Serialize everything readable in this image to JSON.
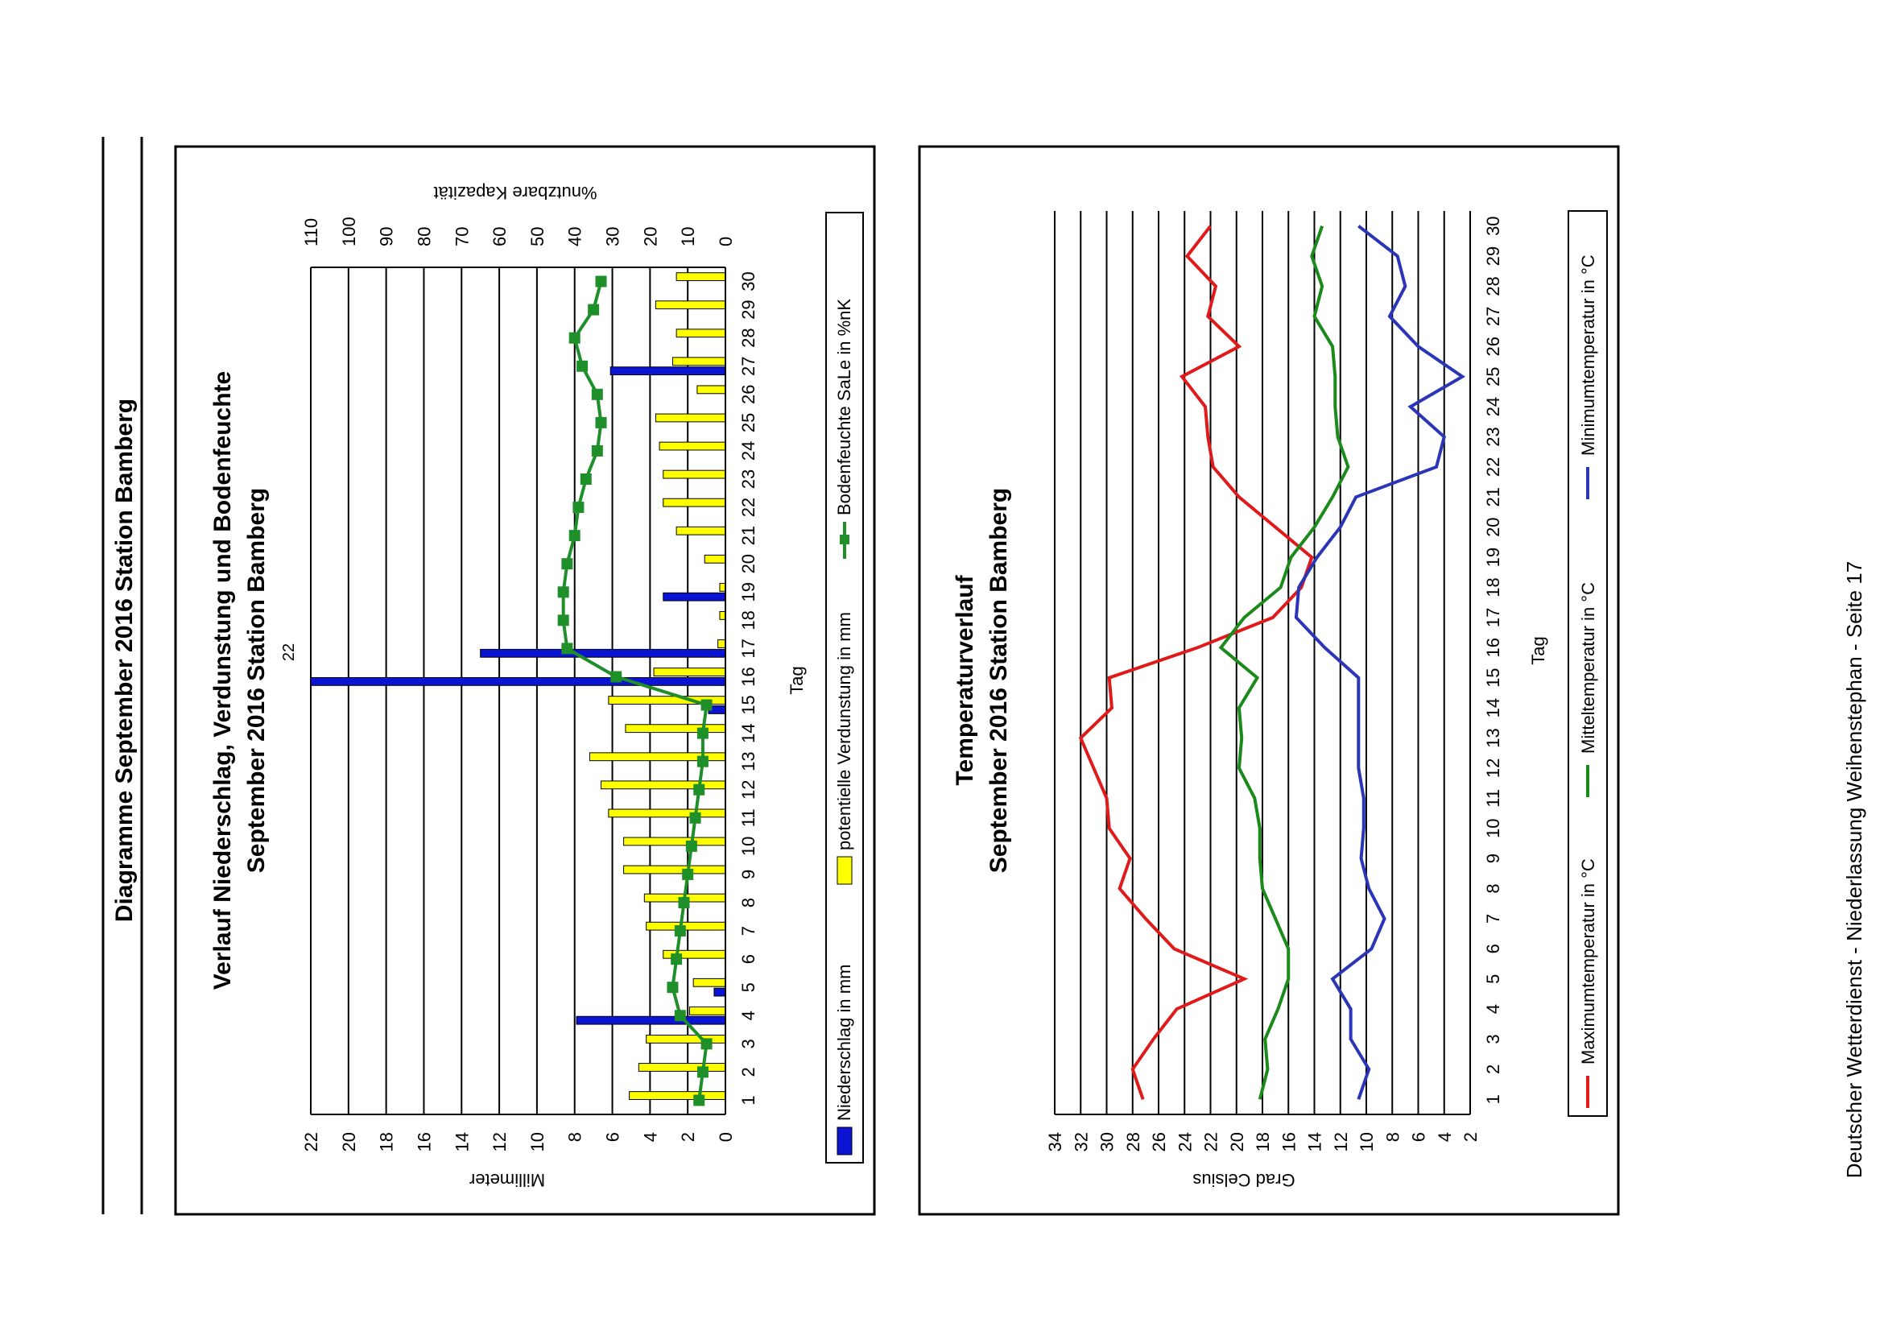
{
  "page": {
    "title": "Diagramme September 2016 Station Bamberg",
    "footer": "Deutscher Wetterdienst - Niederlassung Weihenstephan - Seite 17"
  },
  "chart_data": [
    {
      "type": "bar",
      "title": "Verlauf Niederschlag, Verdunstung und Bodenfeuchte",
      "subtitle": "September 2016 Station Bamberg",
      "xlabel": "Tag",
      "ylabel": "Millimeter",
      "y2label": "%nutzbare Kapazität",
      "categories": [
        1,
        2,
        3,
        4,
        5,
        6,
        7,
        8,
        9,
        10,
        11,
        12,
        13,
        14,
        15,
        16,
        17,
        18,
        19,
        20,
        21,
        22,
        23,
        24,
        25,
        26,
        27,
        28,
        29,
        30
      ],
      "ylim": [
        0,
        22
      ],
      "y2lim": [
        0,
        110
      ],
      "yticks": [
        0,
        2,
        4,
        6,
        8,
        10,
        12,
        14,
        16,
        18,
        20,
        22
      ],
      "y2ticks": [
        0,
        10,
        20,
        30,
        40,
        50,
        60,
        70,
        80,
        90,
        100,
        110
      ],
      "clipped_label": "22",
      "grid": true,
      "legend_position": "bottom",
      "colors": {
        "precip": "#0a14d2",
        "evap": "#ffff00",
        "soil": "#1f8f2a"
      },
      "series": [
        {
          "name": "Niederschlag in mm",
          "axis": "left",
          "kind": "bar",
          "values": [
            0,
            0,
            0,
            7.9,
            0.6,
            0,
            0,
            0,
            0,
            0,
            0,
            0,
            0,
            0,
            0.9,
            22,
            13.0,
            0,
            3.3,
            0,
            0,
            0,
            0,
            0,
            0,
            0,
            6.1,
            0,
            0,
            0
          ]
        },
        {
          "name": "potentielle Verdunstung in mm",
          "axis": "left",
          "kind": "bar",
          "values": [
            5.1,
            4.6,
            4.2,
            1.9,
            1.7,
            3.3,
            4.2,
            4.3,
            5.4,
            5.4,
            6.2,
            6.6,
            7.2,
            5.3,
            6.2,
            3.8,
            0.4,
            0.3,
            0.3,
            1.1,
            2.6,
            3.3,
            3.3,
            3.5,
            3.7,
            1.5,
            2.8,
            2.6,
            3.7,
            2.6
          ]
        },
        {
          "name": "Bodenfeuchte SaLe in %nK",
          "axis": "right",
          "kind": "line",
          "values": [
            7,
            6,
            5,
            12,
            14,
            13,
            12,
            11,
            10,
            9,
            8,
            7,
            6,
            6,
            5,
            29,
            42,
            43,
            43,
            42,
            40,
            39,
            37,
            34,
            33,
            34,
            38,
            40,
            35,
            33
          ]
        }
      ]
    },
    {
      "type": "line",
      "title": "Temperaturverlauf",
      "subtitle": "September 2016 Station Bamberg",
      "xlabel": "Tag",
      "ylabel": "Grad Celsius",
      "x": [
        1,
        2,
        3,
        4,
        5,
        6,
        7,
        8,
        9,
        10,
        11,
        12,
        13,
        14,
        15,
        16,
        17,
        18,
        19,
        20,
        21,
        22,
        23,
        24,
        25,
        26,
        27,
        28,
        29,
        30
      ],
      "ylim": [
        2,
        34
      ],
      "yticks": [
        2,
        4,
        6,
        8,
        10,
        12,
        14,
        16,
        18,
        20,
        22,
        24,
        26,
        28,
        30,
        32,
        34
      ],
      "grid": true,
      "legend_position": "bottom",
      "series": [
        {
          "name": "Maximumtemperatur in °C",
          "color": "#e01a1a",
          "values": [
            27.2,
            28.0,
            26.4,
            24.6,
            19.4,
            24.8,
            27.0,
            29.0,
            28.2,
            29.8,
            30.0,
            31.0,
            32.0,
            29.6,
            29.8,
            23.0,
            17.2,
            15.0,
            14.2,
            17.0,
            19.8,
            21.8,
            22.2,
            22.4,
            24.2,
            19.8,
            22.2,
            21.6,
            23.8,
            22.0
          ]
        },
        {
          "name": "Mitteltemperatur in °C",
          "color": "#1a8a1a",
          "values": [
            18.2,
            17.6,
            17.8,
            16.8,
            16.0,
            16.0,
            17.0,
            18.0,
            18.2,
            18.2,
            18.6,
            19.8,
            19.6,
            19.8,
            18.4,
            21.2,
            19.4,
            16.6,
            15.8,
            14.0,
            12.6,
            11.4,
            12.2,
            12.4,
            12.4,
            12.6,
            14.0,
            13.4,
            14.2,
            13.4
          ]
        },
        {
          "name": "Minimumtemperatur in °C",
          "color": "#2a35b8",
          "values": [
            10.6,
            9.8,
            11.2,
            11.2,
            12.6,
            9.6,
            8.6,
            9.8,
            10.4,
            10.2,
            10.2,
            10.6,
            10.6,
            10.6,
            10.6,
            13.2,
            15.4,
            15.2,
            13.8,
            12.0,
            10.8,
            4.6,
            4.0,
            6.6,
            2.6,
            6.0,
            8.2,
            7.0,
            7.6,
            10.6
          ]
        }
      ]
    }
  ]
}
